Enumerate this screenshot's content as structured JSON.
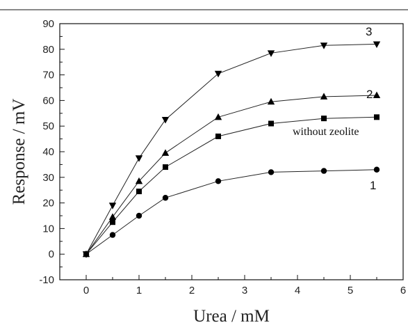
{
  "chart_data": {
    "type": "line",
    "title": "",
    "xlabel": "Urea / mM",
    "ylabel": "Response / mV",
    "xlim": [
      -0.5,
      6
    ],
    "ylim": [
      -10,
      90
    ],
    "xticks": [
      0,
      1,
      2,
      3,
      4,
      5,
      6
    ],
    "yticks": [
      -10,
      0,
      10,
      20,
      30,
      40,
      50,
      60,
      70,
      80,
      90
    ],
    "grid": false,
    "legend": "none",
    "x": [
      0,
      0.5,
      1,
      1.5,
      2.5,
      3.5,
      4.5,
      5.5
    ],
    "series": [
      {
        "name": "3",
        "marker": "triangle-down",
        "values": [
          0,
          19,
          37.5,
          52.5,
          70.5,
          78.5,
          81.5,
          82
        ]
      },
      {
        "name": "2",
        "marker": "triangle-up",
        "values": [
          0,
          14.5,
          28.5,
          39.5,
          53.5,
          59.5,
          61.5,
          62
        ]
      },
      {
        "name": "without zeolite",
        "marker": "square",
        "values": [
          0,
          12.5,
          24.5,
          34,
          46,
          51,
          53,
          53.5
        ]
      },
      {
        "name": "1",
        "marker": "circle",
        "values": [
          0,
          7.5,
          15,
          22,
          28.5,
          32,
          32.5,
          33
        ]
      }
    ]
  }
}
